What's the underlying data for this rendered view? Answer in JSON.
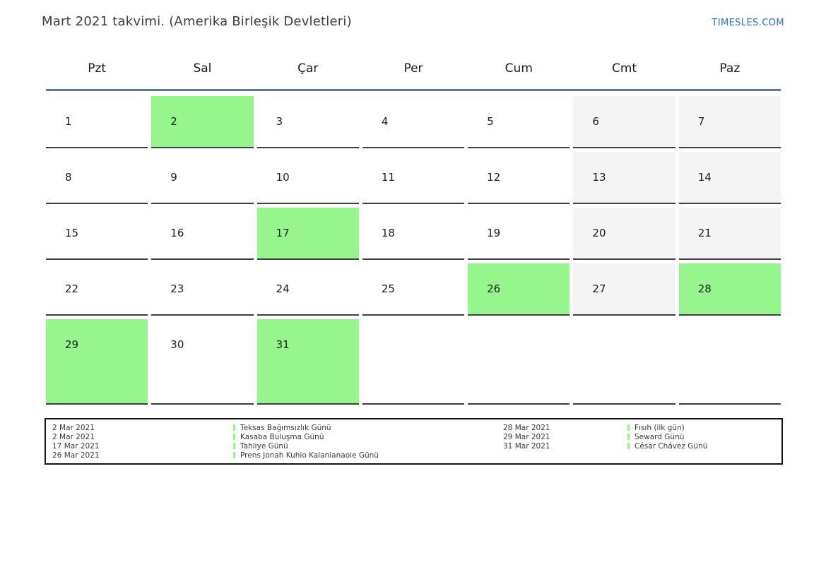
{
  "page": {
    "title": "Mart 2021 takvimi. (Amerika Birleşik Devletleri)",
    "logo": "TIMESLES.COM"
  },
  "colors": {
    "holiday_green": "#96f58c",
    "weekend_gray": "#f4f4f4",
    "separator_blue": "#5b7a9b",
    "logo_blue": "#2d74b9",
    "cell_border": "#3f3f3f"
  },
  "calendar": {
    "weekdays": [
      "Pzt",
      "Sal",
      "Çar",
      "Per",
      "Cum",
      "Cmt",
      "Paz"
    ],
    "weeks": [
      [
        {
          "day": "1",
          "type": "normal"
        },
        {
          "day": "2",
          "type": "holiday"
        },
        {
          "day": "3",
          "type": "normal"
        },
        {
          "day": "4",
          "type": "normal"
        },
        {
          "day": "5",
          "type": "normal"
        },
        {
          "day": "6",
          "type": "weekend"
        },
        {
          "day": "7",
          "type": "weekend"
        }
      ],
      [
        {
          "day": "8",
          "type": "normal"
        },
        {
          "day": "9",
          "type": "normal"
        },
        {
          "day": "10",
          "type": "normal"
        },
        {
          "day": "11",
          "type": "normal"
        },
        {
          "day": "12",
          "type": "normal"
        },
        {
          "day": "13",
          "type": "weekend"
        },
        {
          "day": "14",
          "type": "weekend"
        }
      ],
      [
        {
          "day": "15",
          "type": "normal"
        },
        {
          "day": "16",
          "type": "normal"
        },
        {
          "day": "17",
          "type": "holiday"
        },
        {
          "day": "18",
          "type": "normal"
        },
        {
          "day": "19",
          "type": "normal"
        },
        {
          "day": "20",
          "type": "weekend"
        },
        {
          "day": "21",
          "type": "weekend"
        }
      ],
      [
        {
          "day": "22",
          "type": "normal"
        },
        {
          "day": "23",
          "type": "normal"
        },
        {
          "day": "24",
          "type": "normal"
        },
        {
          "day": "25",
          "type": "normal"
        },
        {
          "day": "26",
          "type": "holiday"
        },
        {
          "day": "27",
          "type": "weekend"
        },
        {
          "day": "28",
          "type": "holiday"
        }
      ],
      [
        {
          "day": "29",
          "type": "holiday"
        },
        {
          "day": "30",
          "type": "normal"
        },
        {
          "day": "31",
          "type": "holiday"
        },
        {
          "day": "",
          "type": "empty"
        },
        {
          "day": "",
          "type": "empty"
        },
        {
          "day": "",
          "type": "empty"
        },
        {
          "day": "",
          "type": "empty"
        }
      ]
    ]
  },
  "legend": {
    "left": [
      {
        "date": "2 Mar 2021",
        "name": "Teksas Bağımsızlık Günü"
      },
      {
        "date": "2 Mar 2021",
        "name": "Kasaba Buluşma Günü"
      },
      {
        "date": "17 Mar 2021",
        "name": "Tahliye Günü"
      },
      {
        "date": "26 Mar 2021",
        "name": "Prens Jonah Kuhio Kalanianaole Günü"
      }
    ],
    "right": [
      {
        "date": "28 Mar 2021",
        "name": "Fısıh (ilk gün)"
      },
      {
        "date": "29 Mar 2021",
        "name": "Seward Günü"
      },
      {
        "date": "31 Mar 2021",
        "name": "César Chávez Günü"
      }
    ]
  }
}
